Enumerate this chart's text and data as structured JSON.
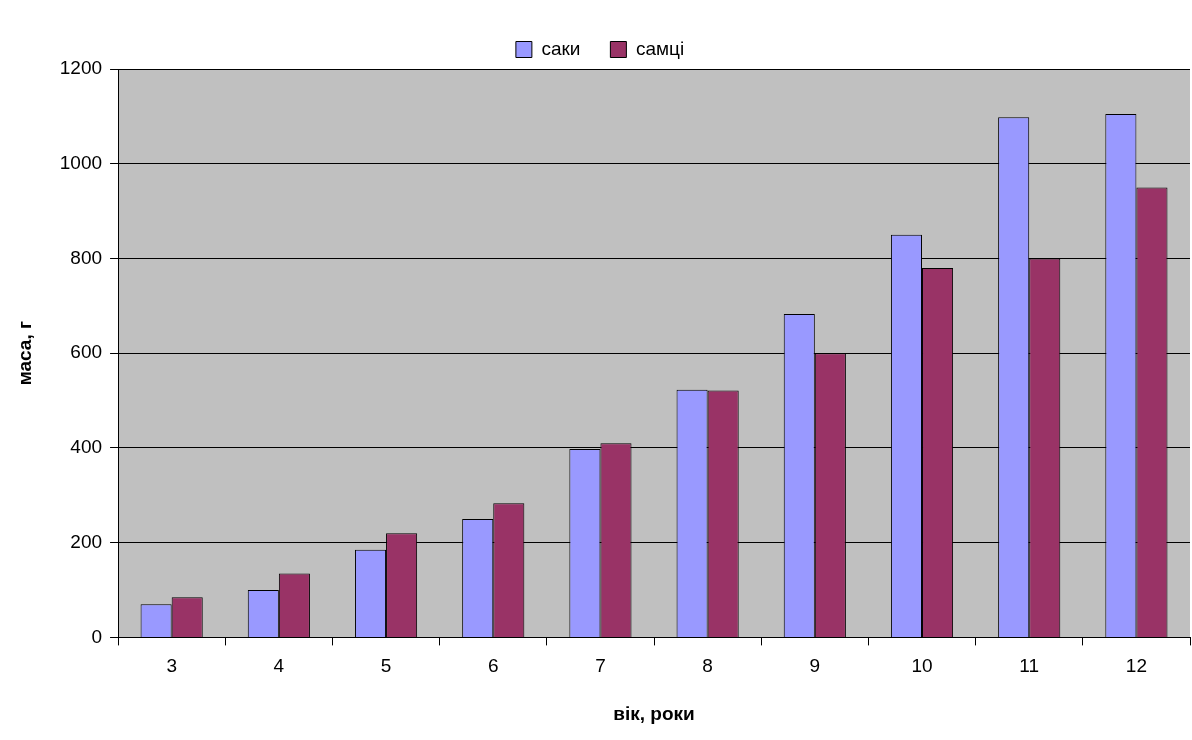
{
  "chart_data": {
    "type": "bar",
    "xlabel": "вік, роки",
    "ylabel": "маса, г",
    "categories": [
      "3",
      "4",
      "5",
      "6",
      "7",
      "8",
      "9",
      "10",
      "11",
      "12"
    ],
    "series": [
      {
        "name": "саки",
        "color": "#9999ff",
        "values": [
          70,
          100,
          185,
          250,
          398,
          523,
          683,
          850,
          1098,
          1105
        ]
      },
      {
        "name": "самці",
        "color": "#993366",
        "values": [
          85,
          135,
          220,
          283,
          410,
          521,
          600,
          780,
          800,
          950
        ]
      }
    ],
    "ylim": [
      0,
      1200
    ],
    "yticks": [
      0,
      200,
      400,
      600,
      800,
      1000,
      1200
    ],
    "grid": "y",
    "legend": "top"
  }
}
